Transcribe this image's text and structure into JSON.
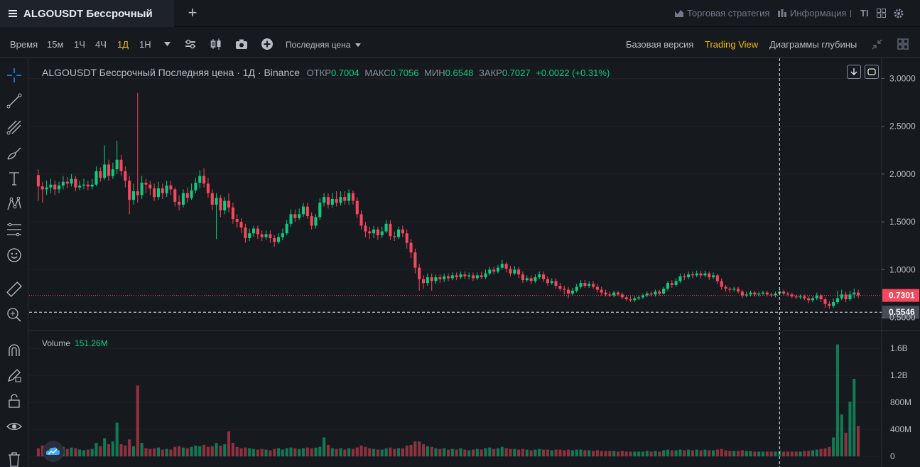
{
  "header": {
    "symbol_title": "ALGOUSDT Бессрочный",
    "strategy_label": "Торговая стратегия",
    "info_label": "Информация"
  },
  "toolbar": {
    "time_label": "Время",
    "intervals": [
      "15м",
      "1Ч",
      "4Ч",
      "1Д",
      "1Н"
    ],
    "active_interval": "1Д",
    "price_type": "Последняя цена",
    "basic_version": "Базовая версия",
    "trading_view": "Trading View",
    "depth_chart": "Диаграммы глубины"
  },
  "legend": {
    "title": "ALGOUSDT Бессрочный Последняя цена · 1Д · Binance",
    "open_label": "ОТКР",
    "open": "0.7004",
    "high_label": "МАКС",
    "high": "0.7056",
    "low_label": "МИН",
    "low": "0.6548",
    "close_label": "ЗАКР",
    "close": "0.7027",
    "change": "+0.0022 (+0.31%)"
  },
  "volume": {
    "label": "Volume",
    "value": "151.26M"
  },
  "price_axis": {
    "ticks": [
      "3.0000",
      "2.5000",
      "2.0000",
      "1.5000",
      "1.0000",
      "0.5000"
    ],
    "last_price": "0.7301",
    "crosshair_price": "0.5546"
  },
  "volume_axis": {
    "ticks": [
      "1.6B",
      "1.2B",
      "800M",
      "400M",
      "0"
    ]
  },
  "colors": {
    "up": "#0ecb81",
    "down": "#f6465d",
    "accent": "#f0b90b",
    "background": "#161a1e"
  },
  "chart_data": {
    "type": "candlestick",
    "price_ylim": [
      0.4,
      3.1
    ],
    "volume_ylim": [
      0,
      1.75
    ],
    "volume_unit": "B",
    "candles": [
      [
        1.99,
        1.87,
        2.05,
        1.72,
        0.12
      ],
      [
        1.87,
        1.84,
        1.92,
        1.7,
        0.16
      ],
      [
        1.84,
        1.86,
        1.93,
        1.78,
        0.14
      ],
      [
        1.86,
        1.89,
        1.95,
        1.8,
        0.17
      ],
      [
        1.89,
        1.84,
        1.93,
        1.78,
        0.13
      ],
      [
        1.84,
        1.88,
        1.92,
        1.8,
        0.12
      ],
      [
        1.88,
        1.92,
        1.98,
        1.84,
        0.14
      ],
      [
        1.92,
        1.9,
        1.97,
        1.85,
        0.11
      ],
      [
        1.9,
        1.95,
        2.0,
        1.87,
        0.13
      ],
      [
        1.95,
        1.86,
        1.98,
        1.82,
        0.12
      ],
      [
        1.86,
        1.88,
        1.93,
        1.83,
        0.1
      ],
      [
        1.88,
        1.89,
        1.95,
        1.84,
        0.09
      ],
      [
        1.89,
        1.87,
        1.93,
        1.83,
        0.1
      ],
      [
        1.87,
        1.89,
        1.95,
        1.84,
        0.11
      ],
      [
        1.89,
        2.03,
        2.08,
        1.87,
        0.2
      ],
      [
        2.03,
        1.96,
        2.07,
        1.92,
        0.15
      ],
      [
        1.96,
        2.1,
        2.3,
        1.94,
        0.27
      ],
      [
        2.1,
        1.98,
        2.15,
        1.93,
        0.18
      ],
      [
        1.98,
        2.05,
        2.12,
        1.95,
        0.22
      ],
      [
        2.05,
        2.15,
        2.35,
        2.0,
        0.5
      ],
      [
        2.15,
        2.03,
        2.2,
        1.98,
        0.18
      ],
      [
        2.03,
        1.93,
        2.08,
        1.86,
        0.16
      ],
      [
        1.93,
        1.73,
        1.98,
        1.58,
        0.25
      ],
      [
        1.73,
        1.82,
        1.9,
        1.68,
        0.15
      ],
      [
        1.82,
        1.78,
        2.85,
        1.7,
        1.05
      ],
      [
        1.78,
        1.91,
        1.98,
        1.74,
        0.2
      ],
      [
        1.91,
        1.89,
        1.95,
        1.8,
        0.12
      ],
      [
        1.89,
        1.85,
        1.93,
        1.78,
        0.11
      ],
      [
        1.85,
        1.76,
        1.9,
        1.72,
        0.12
      ],
      [
        1.76,
        1.85,
        1.92,
        1.73,
        0.13
      ],
      [
        1.85,
        1.8,
        1.9,
        1.74,
        0.1
      ],
      [
        1.8,
        1.88,
        1.93,
        1.76,
        0.11
      ],
      [
        1.88,
        1.84,
        1.93,
        1.78,
        0.1
      ],
      [
        1.84,
        1.71,
        1.86,
        1.66,
        0.14
      ],
      [
        1.71,
        1.68,
        1.78,
        1.62,
        0.15
      ],
      [
        1.68,
        1.8,
        1.84,
        1.65,
        0.13
      ],
      [
        1.8,
        1.75,
        1.86,
        1.7,
        0.12
      ],
      [
        1.75,
        1.83,
        1.9,
        1.73,
        0.14
      ],
      [
        1.83,
        1.91,
        1.96,
        1.8,
        0.16
      ],
      [
        1.91,
        1.98,
        2.04,
        1.85,
        0.15
      ],
      [
        1.98,
        1.9,
        2.06,
        1.86,
        0.17
      ],
      [
        1.9,
        1.8,
        1.96,
        1.75,
        0.14
      ],
      [
        1.8,
        1.68,
        1.84,
        1.62,
        0.15
      ],
      [
        1.68,
        1.75,
        1.8,
        1.32,
        0.2
      ],
      [
        1.75,
        1.62,
        1.78,
        1.55,
        0.16
      ],
      [
        1.62,
        1.72,
        1.76,
        1.58,
        0.18
      ],
      [
        1.72,
        1.65,
        1.8,
        1.6,
        0.37
      ],
      [
        1.65,
        1.53,
        1.7,
        1.48,
        0.2
      ],
      [
        1.53,
        1.5,
        1.58,
        1.44,
        0.14
      ],
      [
        1.5,
        1.44,
        1.54,
        1.38,
        0.12
      ],
      [
        1.44,
        1.33,
        1.48,
        1.28,
        0.13
      ],
      [
        1.33,
        1.38,
        1.43,
        1.3,
        0.12
      ],
      [
        1.38,
        1.43,
        1.46,
        1.34,
        0.11
      ],
      [
        1.43,
        1.37,
        1.46,
        1.32,
        0.1
      ],
      [
        1.37,
        1.34,
        1.41,
        1.3,
        0.11
      ],
      [
        1.34,
        1.37,
        1.41,
        1.31,
        0.1
      ],
      [
        1.37,
        1.33,
        1.41,
        1.28,
        0.09
      ],
      [
        1.33,
        1.29,
        1.36,
        1.24,
        0.11
      ],
      [
        1.29,
        1.34,
        1.38,
        1.27,
        0.12
      ],
      [
        1.34,
        1.38,
        1.43,
        1.31,
        0.1
      ],
      [
        1.38,
        1.48,
        1.52,
        1.36,
        0.12
      ],
      [
        1.48,
        1.58,
        1.63,
        1.45,
        0.13
      ],
      [
        1.58,
        1.54,
        1.63,
        1.5,
        0.12
      ],
      [
        1.54,
        1.58,
        1.64,
        1.52,
        0.11
      ],
      [
        1.58,
        1.66,
        1.7,
        1.55,
        0.12
      ],
      [
        1.66,
        1.56,
        1.7,
        1.53,
        0.13
      ],
      [
        1.56,
        1.46,
        1.6,
        1.42,
        0.12
      ],
      [
        1.46,
        1.55,
        1.58,
        1.43,
        0.13
      ],
      [
        1.55,
        1.7,
        1.75,
        1.52,
        0.14
      ],
      [
        1.7,
        1.76,
        1.8,
        1.66,
        0.28
      ],
      [
        1.76,
        1.68,
        1.8,
        1.64,
        0.17
      ],
      [
        1.68,
        1.74,
        1.8,
        1.65,
        0.12
      ],
      [
        1.74,
        1.7,
        1.82,
        1.66,
        0.11
      ],
      [
        1.7,
        1.76,
        1.82,
        1.67,
        0.12
      ],
      [
        1.76,
        1.72,
        1.82,
        1.68,
        0.1
      ],
      [
        1.72,
        1.8,
        1.84,
        1.68,
        0.12
      ],
      [
        1.8,
        1.72,
        1.83,
        1.68,
        0.11
      ],
      [
        1.72,
        1.58,
        1.76,
        1.54,
        0.13
      ],
      [
        1.58,
        1.46,
        1.62,
        1.42,
        0.16
      ],
      [
        1.46,
        1.4,
        1.5,
        1.34,
        0.14
      ],
      [
        1.4,
        1.38,
        1.45,
        1.32,
        0.12
      ],
      [
        1.38,
        1.42,
        1.46,
        1.33,
        0.11
      ],
      [
        1.42,
        1.36,
        1.45,
        1.31,
        0.1
      ],
      [
        1.36,
        1.4,
        1.45,
        1.33,
        0.1
      ],
      [
        1.4,
        1.48,
        1.52,
        1.38,
        0.12
      ],
      [
        1.48,
        1.35,
        1.52,
        1.31,
        0.13
      ],
      [
        1.35,
        1.34,
        1.4,
        1.3,
        0.11
      ],
      [
        1.34,
        1.42,
        1.45,
        1.32,
        0.12
      ],
      [
        1.42,
        1.38,
        1.46,
        1.34,
        0.12
      ],
      [
        1.38,
        1.28,
        1.42,
        1.22,
        0.16
      ],
      [
        1.28,
        1.18,
        1.32,
        1.12,
        0.17
      ],
      [
        1.18,
        1.02,
        1.22,
        0.96,
        0.22
      ],
      [
        1.02,
        0.9,
        1.06,
        0.78,
        0.22
      ],
      [
        0.9,
        0.86,
        0.94,
        0.8,
        0.18
      ],
      [
        0.86,
        0.92,
        0.96,
        0.83,
        0.15
      ],
      [
        0.92,
        0.88,
        0.96,
        0.78,
        0.14
      ],
      [
        0.88,
        0.92,
        0.95,
        0.85,
        0.12
      ],
      [
        0.92,
        0.9,
        0.95,
        0.86,
        0.11
      ],
      [
        0.9,
        0.93,
        0.96,
        0.87,
        0.12
      ],
      [
        0.93,
        0.91,
        0.96,
        0.88,
        0.1
      ],
      [
        0.91,
        0.94,
        0.97,
        0.89,
        0.11
      ],
      [
        0.94,
        0.92,
        0.97,
        0.89,
        0.1
      ],
      [
        0.92,
        0.95,
        0.98,
        0.9,
        0.12
      ],
      [
        0.95,
        0.93,
        0.98,
        0.9,
        0.1
      ],
      [
        0.93,
        0.94,
        0.97,
        0.9,
        0.09
      ],
      [
        0.94,
        0.91,
        0.97,
        0.88,
        0.1
      ],
      [
        0.91,
        0.94,
        0.97,
        0.89,
        0.11
      ],
      [
        0.94,
        0.92,
        0.98,
        0.9,
        0.1
      ],
      [
        0.92,
        0.96,
        1.0,
        0.9,
        0.12
      ],
      [
        0.96,
        1.0,
        1.03,
        0.94,
        0.13
      ],
      [
        1.0,
        0.98,
        1.03,
        0.95,
        0.11
      ],
      [
        0.98,
        1.02,
        1.05,
        0.96,
        0.12
      ],
      [
        1.02,
        1.06,
        1.1,
        1.0,
        0.14
      ],
      [
        1.06,
        1.01,
        1.08,
        0.97,
        0.12
      ],
      [
        1.01,
        0.96,
        1.04,
        0.93,
        0.11
      ],
      [
        0.96,
        1.0,
        1.04,
        0.94,
        0.11
      ],
      [
        1.0,
        0.95,
        1.03,
        0.91,
        0.1
      ],
      [
        0.95,
        0.89,
        0.98,
        0.86,
        0.11
      ],
      [
        0.89,
        0.91,
        0.94,
        0.87,
        0.1
      ],
      [
        0.91,
        0.88,
        0.94,
        0.85,
        0.09
      ],
      [
        0.88,
        0.92,
        0.95,
        0.86,
        0.1
      ],
      [
        0.92,
        0.95,
        0.98,
        0.9,
        0.11
      ],
      [
        0.95,
        0.9,
        0.98,
        0.87,
        0.1
      ],
      [
        0.9,
        0.86,
        0.93,
        0.83,
        0.1
      ],
      [
        0.86,
        0.88,
        0.91,
        0.84,
        0.09
      ],
      [
        0.88,
        0.83,
        0.91,
        0.8,
        0.1
      ],
      [
        0.83,
        0.8,
        0.86,
        0.77,
        0.1
      ],
      [
        0.8,
        0.79,
        0.83,
        0.74,
        0.09
      ],
      [
        0.79,
        0.75,
        0.82,
        0.7,
        0.1
      ],
      [
        0.75,
        0.78,
        0.81,
        0.73,
        0.09
      ],
      [
        0.78,
        0.82,
        0.85,
        0.76,
        0.1
      ],
      [
        0.82,
        0.86,
        0.89,
        0.8,
        0.1
      ],
      [
        0.86,
        0.83,
        0.89,
        0.81,
        0.09
      ],
      [
        0.83,
        0.85,
        0.88,
        0.81,
        0.09
      ],
      [
        0.85,
        0.82,
        0.88,
        0.8,
        0.08
      ],
      [
        0.82,
        0.79,
        0.85,
        0.76,
        0.09
      ],
      [
        0.79,
        0.76,
        0.82,
        0.73,
        0.08
      ],
      [
        0.76,
        0.74,
        0.79,
        0.72,
        0.08
      ],
      [
        0.74,
        0.73,
        0.77,
        0.71,
        0.08
      ],
      [
        0.73,
        0.76,
        0.78,
        0.71,
        0.08
      ],
      [
        0.76,
        0.74,
        0.78,
        0.72,
        0.07
      ],
      [
        0.74,
        0.71,
        0.76,
        0.69,
        0.08
      ],
      [
        0.71,
        0.69,
        0.73,
        0.67,
        0.07
      ],
      [
        0.69,
        0.68,
        0.72,
        0.66,
        0.07
      ],
      [
        0.68,
        0.7,
        0.72,
        0.66,
        0.07
      ],
      [
        0.7,
        0.71,
        0.73,
        0.68,
        0.07
      ],
      [
        0.71,
        0.73,
        0.75,
        0.69,
        0.07
      ],
      [
        0.73,
        0.75,
        0.77,
        0.71,
        0.08
      ],
      [
        0.75,
        0.74,
        0.77,
        0.72,
        0.07
      ],
      [
        0.74,
        0.77,
        0.79,
        0.72,
        0.08
      ],
      [
        0.77,
        0.75,
        0.79,
        0.73,
        0.07
      ],
      [
        0.75,
        0.8,
        0.82,
        0.74,
        0.09
      ],
      [
        0.8,
        0.86,
        0.88,
        0.78,
        0.1
      ],
      [
        0.86,
        0.84,
        0.89,
        0.81,
        0.09
      ],
      [
        0.84,
        0.88,
        0.91,
        0.82,
        0.09
      ],
      [
        0.88,
        0.93,
        0.96,
        0.86,
        0.1
      ],
      [
        0.93,
        0.92,
        0.96,
        0.89,
        0.09
      ],
      [
        0.92,
        0.95,
        0.98,
        0.9,
        0.1
      ],
      [
        0.95,
        0.94,
        0.98,
        0.91,
        0.09
      ],
      [
        0.94,
        0.96,
        0.99,
        0.92,
        0.1
      ],
      [
        0.96,
        0.94,
        0.99,
        0.91,
        0.09
      ],
      [
        0.94,
        0.96,
        0.99,
        0.92,
        0.1
      ],
      [
        0.96,
        0.92,
        0.98,
        0.89,
        0.09
      ],
      [
        0.92,
        0.94,
        0.97,
        0.9,
        0.09
      ],
      [
        0.94,
        0.88,
        0.96,
        0.85,
        0.1
      ],
      [
        0.88,
        0.82,
        0.91,
        0.79,
        0.11
      ],
      [
        0.82,
        0.8,
        0.84,
        0.77,
        0.09
      ],
      [
        0.8,
        0.79,
        0.82,
        0.76,
        0.08
      ],
      [
        0.79,
        0.8,
        0.82,
        0.77,
        0.08
      ],
      [
        0.8,
        0.77,
        0.82,
        0.75,
        0.08
      ],
      [
        0.77,
        0.73,
        0.79,
        0.7,
        0.09
      ],
      [
        0.73,
        0.74,
        0.77,
        0.71,
        0.08
      ],
      [
        0.74,
        0.76,
        0.78,
        0.72,
        0.08
      ],
      [
        0.76,
        0.74,
        0.78,
        0.72,
        0.07
      ],
      [
        0.74,
        0.75,
        0.77,
        0.72,
        0.07
      ],
      [
        0.75,
        0.76,
        0.78,
        0.73,
        0.07
      ],
      [
        0.76,
        0.74,
        0.78,
        0.72,
        0.07
      ],
      [
        0.74,
        0.73,
        0.76,
        0.71,
        0.07
      ],
      [
        0.73,
        0.75,
        0.77,
        0.71,
        0.07
      ],
      [
        0.75,
        0.77,
        0.79,
        0.73,
        0.08
      ],
      [
        0.77,
        0.75,
        0.79,
        0.73,
        0.07
      ],
      [
        0.75,
        0.74,
        0.77,
        0.72,
        0.07
      ],
      [
        0.74,
        0.72,
        0.76,
        0.7,
        0.07
      ],
      [
        0.72,
        0.71,
        0.74,
        0.69,
        0.07
      ],
      [
        0.71,
        0.72,
        0.74,
        0.69,
        0.07
      ],
      [
        0.72,
        0.7,
        0.74,
        0.68,
        0.08
      ],
      [
        0.7,
        0.68,
        0.72,
        0.65,
        0.08
      ],
      [
        0.68,
        0.7,
        0.72,
        0.66,
        0.09
      ],
      [
        0.7,
        0.73,
        0.76,
        0.68,
        0.1
      ],
      [
        0.73,
        0.69,
        0.75,
        0.66,
        0.11
      ],
      [
        0.69,
        0.64,
        0.71,
        0.6,
        0.12
      ],
      [
        0.64,
        0.62,
        0.67,
        0.59,
        0.14
      ],
      [
        0.62,
        0.66,
        0.7,
        0.6,
        0.28
      ],
      [
        0.66,
        0.7,
        0.78,
        0.64,
        1.66
      ],
      [
        0.7,
        0.74,
        0.79,
        0.68,
        0.62
      ],
      [
        0.74,
        0.69,
        0.77,
        0.66,
        0.35
      ],
      [
        0.69,
        0.74,
        0.78,
        0.67,
        0.81
      ],
      [
        0.74,
        0.76,
        0.8,
        0.7,
        1.15
      ],
      [
        0.76,
        0.73,
        0.79,
        0.7,
        0.45
      ]
    ]
  }
}
